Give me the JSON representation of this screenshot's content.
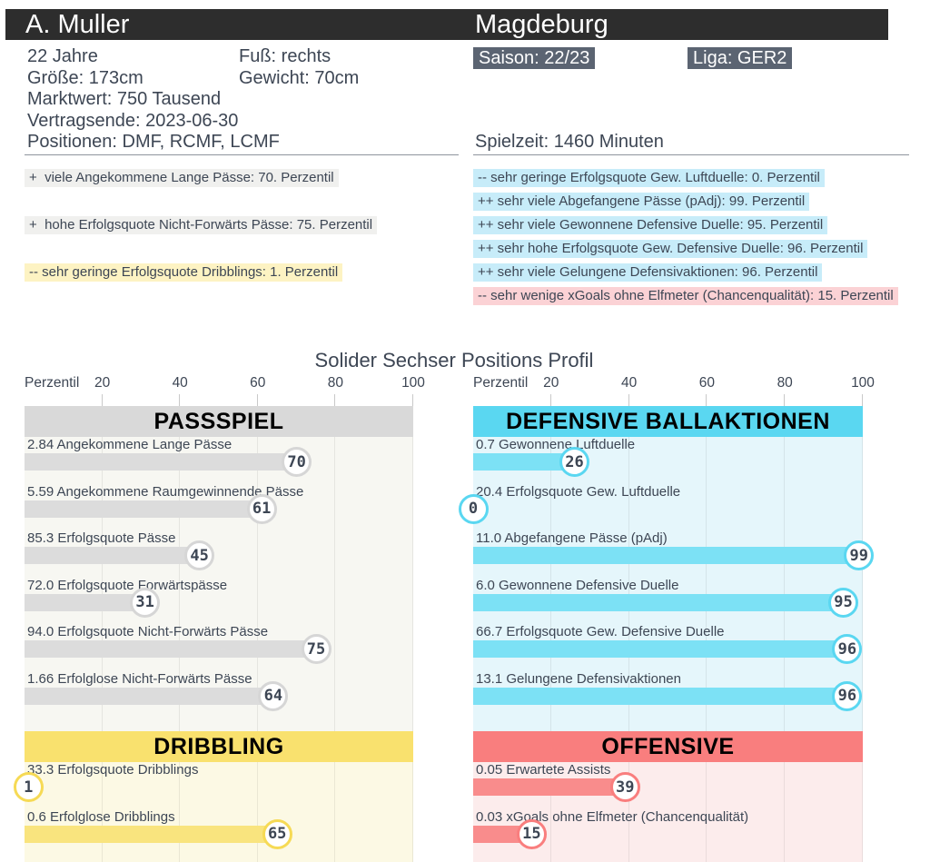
{
  "header": {
    "player": "A. Muller",
    "team": "Magdeburg"
  },
  "info": {
    "age": "22 Jahre",
    "foot": "Fuß: rechts",
    "height": "Größe: 173cm",
    "weight": "Gewicht: 70cm",
    "market_value": "Marktwert: 750 Tausend",
    "contract_end": "Vertragsende: 2023-06-30",
    "positions": "Positionen: DMF, RCMF, LCMF",
    "season_badge": "Saison: 22/23",
    "league_badge": "Liga: GER2",
    "playtime": "Spielzeit: 1460 Minuten"
  },
  "highlights": {
    "left": [
      {
        "slot": 0,
        "text": "+  viele Angekommene Lange Pässe: 70. Perzentil",
        "bg": "#f0f0ee"
      },
      {
        "slot": 2,
        "text": "+  hohe Erfolgsquote Nicht-Forwärts Pässe: 75. Perzentil",
        "bg": "#f0f0ee"
      },
      {
        "slot": 4,
        "text": "-- sehr geringe Erfolgsquote Dribblings: 1. Perzentil",
        "bg": "#fdf3c3"
      }
    ],
    "right": [
      {
        "slot": 0,
        "text": "-- sehr geringe Erfolgsquote Gew. Luftduelle: 0. Perzentil",
        "bg": "#c7ecf9"
      },
      {
        "slot": 1,
        "text": "++ sehr viele Abgefangene Pässe (pAdj): 99. Perzentil",
        "bg": "#c7ecf9"
      },
      {
        "slot": 2,
        "text": "++ sehr viele Gewonnene Defensive Duelle: 95. Perzentil",
        "bg": "#c7ecf9"
      },
      {
        "slot": 3,
        "text": "++ sehr hohe Erfolgsquote Gew. Defensive Duelle: 96. Perzentil",
        "bg": "#c7ecf9"
      },
      {
        "slot": 4,
        "text": "++ sehr viele Gelungene Defensivaktionen: 96. Perzentil",
        "bg": "#c7ecf9"
      },
      {
        "slot": 5,
        "text": "-- sehr wenige xGoals ohne Elfmeter (Chancenqualität): 15. Perzentil",
        "bg": "#fbd2d5"
      }
    ]
  },
  "chart_data": [
    {
      "type": "bar",
      "orientation": "horizontal",
      "position": "left",
      "title": "Solider Sechser Positions Profil",
      "axis": {
        "label": "Perzentil",
        "ticks": [
          20,
          40,
          60,
          80,
          100
        ],
        "min": 0,
        "max": 100
      },
      "sections": [
        {
          "title": "PASSSPIEL",
          "colors": {
            "header_bg": "#d9d9d9",
            "bar": "#dcdcdc",
            "section_bg": "#f7f7f2",
            "badge_border": "#d6d6d6"
          },
          "rows": [
            {
              "label": "2.84 Angekommene Lange Pässe",
              "value": 70
            },
            {
              "label": "5.59 Angekommene Raumgewinnende Pässe",
              "value": 61
            },
            {
              "label": "85.3 Erfolgsquote Pässe",
              "value": 45
            },
            {
              "label": "72.0 Erfolgsquote Forwärtspässe",
              "value": 31
            },
            {
              "label": "94.0 Erfolgsquote Nicht-Forwärts Pässe",
              "value": 75
            },
            {
              "label": "1.66 Erfolglose Nicht-Forwärts Pässe",
              "value": 64
            }
          ]
        },
        {
          "title": "DRIBBLING",
          "colors": {
            "header_bg": "#f9e16e",
            "bar": "#f9e47e",
            "section_bg": "#fcf9e4",
            "badge_border": "#f6da55"
          },
          "rows": [
            {
              "label": "33.3 Erfolgsquote Dribblings",
              "value": 1
            },
            {
              "label": "0.6 Erfolglose Dribblings",
              "value": 65
            }
          ]
        }
      ]
    },
    {
      "type": "bar",
      "orientation": "horizontal",
      "position": "right",
      "title": "Solider Sechser Positions Profil",
      "axis": {
        "label": "Perzentil",
        "ticks": [
          20,
          40,
          60,
          80,
          100
        ],
        "min": 0,
        "max": 100
      },
      "sections": [
        {
          "title": "DEFENSIVE BALLAKTIONEN",
          "colors": {
            "header_bg": "#5ad7f1",
            "bar": "#7ce1f5",
            "section_bg": "#e5f6fb",
            "badge_border": "#5ad7f1"
          },
          "rows": [
            {
              "label": "0.7 Gewonnene Luftduelle",
              "value": 26
            },
            {
              "label": "20.4 Erfolgsquote Gew. Luftduelle",
              "value": 0
            },
            {
              "label": "11.0 Abgefangene Pässe (pAdj)",
              "value": 99
            },
            {
              "label": "6.0 Gewonnene Defensive Duelle",
              "value": 95
            },
            {
              "label": "66.7 Erfolgsquote Gew. Defensive Duelle",
              "value": 96
            },
            {
              "label": "13.1 Gelungene Defensivaktionen",
              "value": 96
            }
          ]
        },
        {
          "title": "OFFENSIVE",
          "colors": {
            "header_bg": "#f97e7e",
            "bar": "#f98c8c",
            "section_bg": "#fcecec",
            "badge_border": "#f97e7e"
          },
          "rows": [
            {
              "label": "0.05 Erwartete Assists",
              "value": 39
            },
            {
              "label": "0.03 xGoals ohne Elfmeter (Chancenqualität)",
              "value": 15
            }
          ]
        }
      ]
    }
  ]
}
